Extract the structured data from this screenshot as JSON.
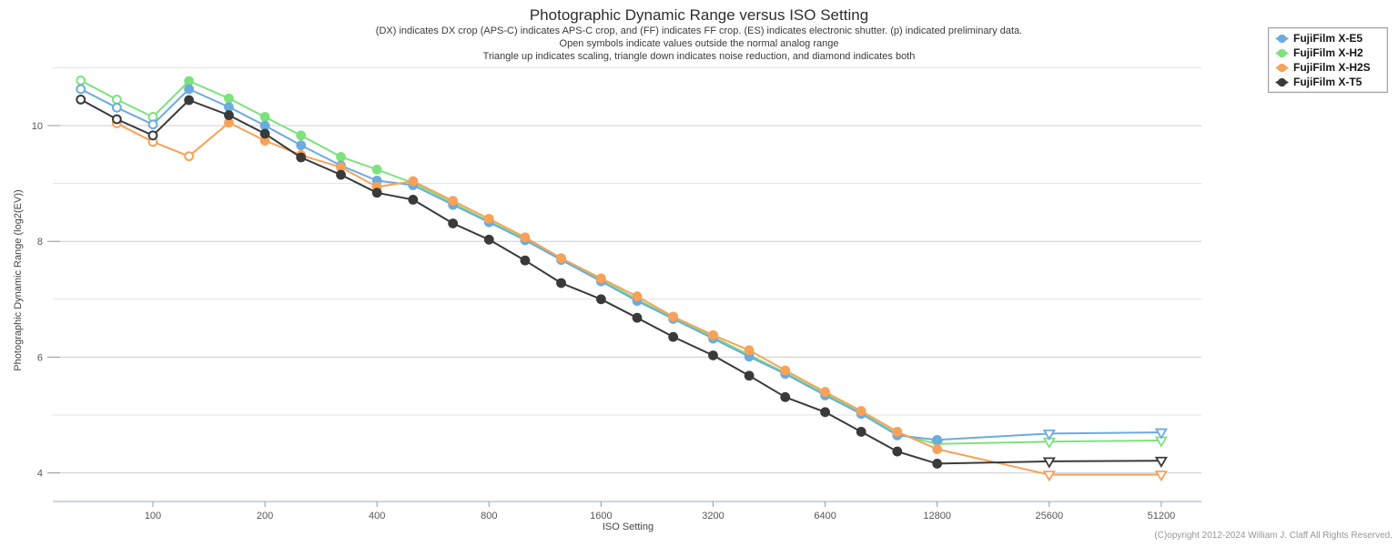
{
  "chart_data": {
    "type": "line",
    "title": "Photographic Dynamic Range versus ISO Setting",
    "subtitle_lines": [
      "(DX) indicates DX crop (APS-C) indicates APS-C crop, and (FF) indicates FF crop. (ES) indicates electronic shutter. (p) indicated preliminary data.",
      "Open symbols indicate values outside the normal analog range",
      "Triangle up indicates scaling, triangle down indicates noise reduction, and diamond indicates both"
    ],
    "xlabel": "ISO Setting",
    "ylabel": "Photographic Dynamic Range (log2(EV))",
    "x_scale": "log2",
    "x_ticks": [
      100,
      200,
      400,
      800,
      1600,
      3200,
      6400,
      12800,
      25600,
      51200
    ],
    "y_ticks": [
      4,
      6,
      8,
      10
    ],
    "y_gridlines": [
      4,
      5,
      6,
      7,
      8,
      9,
      10,
      11
    ],
    "ylim": [
      3.5,
      11.0
    ],
    "grid": "horizontal-only",
    "legend_position": "top-right",
    "marker_legend": {
      "o": "open-circle",
      "f": "filled-circle",
      "v": "open-triangle-down"
    },
    "series": [
      {
        "name": "FujiFilm X-E5",
        "color": "#6babe0",
        "iso": [
          64,
          80,
          100,
          125,
          160,
          200,
          250,
          320,
          400,
          500,
          640,
          800,
          1000,
          1250,
          1600,
          2000,
          2500,
          3200,
          4000,
          5000,
          6400,
          8000,
          10000,
          12800,
          25600,
          51200
        ],
        "ev": [
          10.63,
          10.31,
          10.02,
          10.63,
          10.32,
          10.0,
          9.66,
          9.31,
          9.05,
          8.97,
          8.63,
          8.33,
          8.02,
          7.68,
          7.31,
          6.97,
          6.66,
          6.32,
          6.01,
          5.71,
          5.34,
          5.02,
          4.65,
          4.57,
          4.68,
          4.7
        ],
        "markers": [
          "o",
          "o",
          "o",
          "f",
          "f",
          "f",
          "f",
          "f",
          "f",
          "f",
          "f",
          "f",
          "f",
          "f",
          "f",
          "f",
          "f",
          "f",
          "f",
          "f",
          "f",
          "f",
          "f",
          "f",
          "v",
          "v"
        ]
      },
      {
        "name": "FujiFilm X-H2",
        "color": "#7de27d",
        "iso": [
          64,
          80,
          100,
          125,
          160,
          200,
          250,
          320,
          400,
          500,
          640,
          800,
          1000,
          1250,
          1600,
          2000,
          2500,
          3200,
          4000,
          5000,
          6400,
          8000,
          10000,
          12800,
          25600,
          51200
        ],
        "ev": [
          10.78,
          10.45,
          10.15,
          10.77,
          10.47,
          10.15,
          9.83,
          9.46,
          9.24,
          9.01,
          8.66,
          8.35,
          8.04,
          7.7,
          7.34,
          7.0,
          6.68,
          6.35,
          6.04,
          5.73,
          5.37,
          5.04,
          4.67,
          4.5,
          4.54,
          4.56
        ],
        "markers": [
          "o",
          "o",
          "o",
          "f",
          "f",
          "f",
          "f",
          "f",
          "f",
          "f",
          "f",
          "f",
          "f",
          "f",
          "f",
          "f",
          "f",
          "f",
          "f",
          "f",
          "f",
          "f",
          "f",
          "v",
          "v",
          "v"
        ]
      },
      {
        "name": "FujiFilm X-H2S",
        "color": "#f7a258",
        "iso": [
          80,
          100,
          125,
          160,
          200,
          250,
          320,
          400,
          500,
          640,
          800,
          1000,
          1250,
          1600,
          2000,
          2500,
          3200,
          4000,
          5000,
          6400,
          8000,
          10000,
          12800,
          25600,
          51200
        ],
        "ev": [
          10.04,
          9.72,
          9.47,
          10.05,
          9.74,
          9.49,
          9.28,
          8.94,
          9.04,
          8.7,
          8.39,
          8.07,
          7.71,
          7.36,
          7.05,
          6.7,
          6.38,
          6.12,
          5.77,
          5.4,
          5.07,
          4.71,
          4.41,
          3.97,
          3.97
        ],
        "markers": [
          "o",
          "o",
          "o",
          "f",
          "f",
          "f",
          "f",
          "f",
          "f",
          "f",
          "f",
          "f",
          "f",
          "f",
          "f",
          "f",
          "f",
          "f",
          "f",
          "f",
          "f",
          "f",
          "f",
          "v",
          "v"
        ]
      },
      {
        "name": "FujiFilm X-T5",
        "color": "#3a3a3a",
        "iso": [
          64,
          80,
          100,
          125,
          160,
          200,
          250,
          320,
          400,
          500,
          640,
          800,
          1000,
          1250,
          1600,
          2000,
          2500,
          3200,
          4000,
          5000,
          6400,
          8000,
          10000,
          12800,
          25600,
          51200
        ],
        "ev": [
          10.45,
          10.11,
          9.83,
          10.44,
          10.18,
          9.86,
          9.45,
          9.15,
          8.84,
          8.72,
          8.31,
          8.03,
          7.67,
          7.28,
          7.0,
          6.68,
          6.35,
          6.03,
          5.68,
          5.31,
          5.05,
          4.71,
          4.37,
          4.16,
          4.2,
          4.21
        ],
        "markers": [
          "o",
          "o",
          "o",
          "f",
          "f",
          "f",
          "f",
          "f",
          "f",
          "f",
          "f",
          "f",
          "f",
          "f",
          "f",
          "f",
          "f",
          "f",
          "f",
          "f",
          "f",
          "f",
          "f",
          "f",
          "v",
          "v"
        ]
      }
    ]
  },
  "footer": {
    "copyright": "(C)opyright 2012-2024 William J. Claff All Rights Reserved."
  },
  "colors": {
    "gridline_major": "#cdcdcd",
    "gridline_minor": "#e3e3e3",
    "axis_line": "#b6c8da",
    "tick": "#9a9a9a",
    "tick_label": "#555555"
  }
}
